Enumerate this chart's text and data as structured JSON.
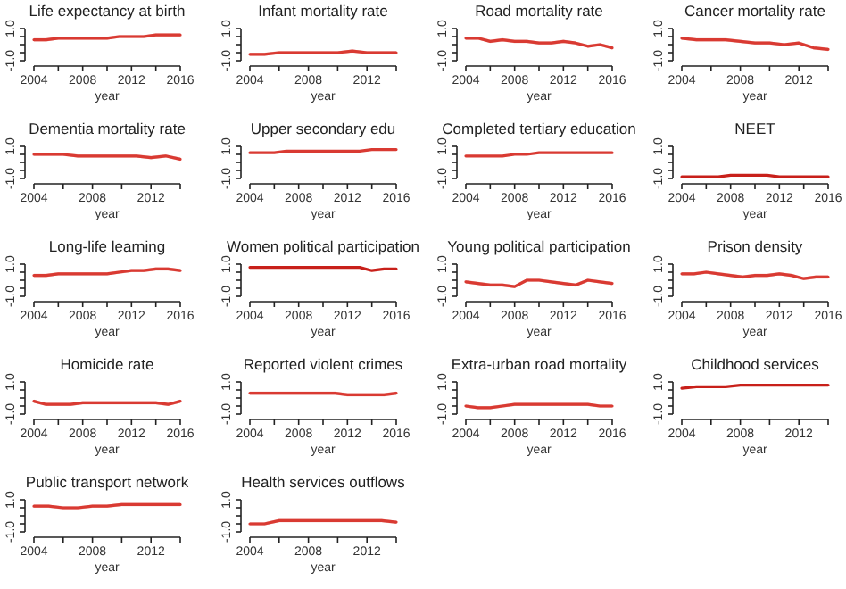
{
  "chart_data": [
    {
      "type": "line",
      "title": "Life expectancy at birth",
      "xlabel": "year",
      "x": [
        2004,
        2005,
        2006,
        2007,
        2008,
        2009,
        2010,
        2011,
        2012,
        2013,
        2014,
        2015,
        2016
      ],
      "xlim": [
        2004,
        2016
      ],
      "xticks": [
        2004,
        {
          "value": 2006,
          "label": null
        },
        2008,
        {
          "value": 2010,
          "label": null
        },
        2012,
        {
          "value": 2014,
          "label": null
        },
        2016
      ],
      "ylim": [
        -1,
        1
      ],
      "yticks": [
        {
          "value": -1,
          "label": "-1.0"
        },
        {
          "value": -0.5,
          "label": null
        },
        {
          "value": 0,
          "label": null
        },
        {
          "value": 0.5,
          "label": null
        },
        {
          "value": 1,
          "label": "1.0"
        }
      ],
      "series": [
        {
          "color": "#d93a32",
          "values": [
            0.3,
            0.3,
            0.4,
            0.4,
            0.4,
            0.4,
            0.4,
            0.5,
            0.5,
            0.5,
            0.6,
            0.6,
            0.6
          ],
          "lower": [
            0.2,
            0.2,
            0.3,
            0.3,
            0.3,
            0.3,
            0.3,
            0.4,
            0.4,
            0.4,
            0.5,
            0.5,
            0.5
          ],
          "upper": [
            0.4,
            0.4,
            0.5,
            0.5,
            0.5,
            0.5,
            0.5,
            0.6,
            0.6,
            0.6,
            0.7,
            0.7,
            0.7
          ]
        }
      ]
    },
    {
      "type": "line",
      "title": "Infant mortality rate",
      "xlabel": "year",
      "x": [
        2004,
        2005,
        2006,
        2007,
        2008,
        2009,
        2010,
        2011,
        2012,
        2013,
        2014
      ],
      "xlim": [
        2004,
        2014
      ],
      "xticks": [
        2004,
        {
          "value": 2006,
          "label": null
        },
        2008,
        {
          "value": 2010,
          "label": null
        },
        2012,
        {
          "value": 2014,
          "label": null
        }
      ],
      "ylim": [
        -1,
        1
      ],
      "yticks": [
        {
          "value": -1,
          "label": "-1.0"
        },
        {
          "value": -0.5,
          "label": null
        },
        {
          "value": 0,
          "label": null
        },
        {
          "value": 0.5,
          "label": null
        },
        {
          "value": 1,
          "label": "1.0"
        }
      ],
      "series": [
        {
          "color": "#d93a32",
          "values": [
            -0.6,
            -0.6,
            -0.5,
            -0.5,
            -0.5,
            -0.5,
            -0.5,
            -0.4,
            -0.5,
            -0.5,
            -0.5
          ],
          "lower": [
            -0.7,
            -0.7,
            -0.6,
            -0.6,
            -0.6,
            -0.6,
            -0.6,
            -0.5,
            -0.6,
            -0.6,
            -0.6
          ],
          "upper": [
            -0.5,
            -0.5,
            -0.4,
            -0.4,
            -0.4,
            -0.4,
            -0.4,
            -0.3,
            -0.4,
            -0.4,
            -0.4
          ]
        }
      ]
    },
    {
      "type": "line",
      "title": "Road mortality rate",
      "xlabel": "year",
      "x": [
        2004,
        2005,
        2006,
        2007,
        2008,
        2009,
        2010,
        2011,
        2012,
        2013,
        2014,
        2015,
        2016
      ],
      "xlim": [
        2004,
        2016
      ],
      "xticks": [
        2004,
        {
          "value": 2006,
          "label": null
        },
        2008,
        {
          "value": 2010,
          "label": null
        },
        2012,
        {
          "value": 2014,
          "label": null
        },
        2016
      ],
      "ylim": [
        -1,
        1
      ],
      "yticks": [
        {
          "value": -1,
          "label": "-1.0"
        },
        {
          "value": -0.5,
          "label": null
        },
        {
          "value": 0,
          "label": null
        },
        {
          "value": 0.5,
          "label": null
        },
        {
          "value": 1,
          "label": "1.0"
        }
      ],
      "series": [
        {
          "color": "#d93a32",
          "values": [
            0.4,
            0.4,
            0.2,
            0.3,
            0.2,
            0.2,
            0.1,
            0.1,
            0.2,
            0.1,
            -0.1,
            0,
            -0.2
          ],
          "lower": [
            0.3,
            0.3,
            0.1,
            0.2,
            0.1,
            0.1,
            0,
            0,
            0.1,
            0,
            -0.2,
            -0.1,
            -0.3
          ],
          "upper": [
            0.5,
            0.5,
            0.3,
            0.4,
            0.3,
            0.3,
            0.2,
            0.2,
            0.3,
            0.2,
            0,
            0.1,
            -0.1
          ]
        }
      ]
    },
    {
      "type": "line",
      "title": "Cancer mortality rate",
      "xlabel": "year",
      "x": [
        2004,
        2005,
        2006,
        2007,
        2008,
        2009,
        2010,
        2011,
        2012,
        2013,
        2014
      ],
      "xlim": [
        2004,
        2014
      ],
      "xticks": [
        2004,
        {
          "value": 2006,
          "label": null
        },
        2008,
        {
          "value": 2010,
          "label": null
        },
        2012,
        {
          "value": 2014,
          "label": null
        }
      ],
      "ylim": [
        -1,
        1
      ],
      "yticks": [
        {
          "value": -1,
          "label": "-1.0"
        },
        {
          "value": -0.5,
          "label": null
        },
        {
          "value": 0,
          "label": null
        },
        {
          "value": 0.5,
          "label": null
        },
        {
          "value": 1,
          "label": "1.0"
        }
      ],
      "series": [
        {
          "color": "#d93a32",
          "values": [
            0.4,
            0.3,
            0.3,
            0.3,
            0.2,
            0.1,
            0.1,
            0,
            0.1,
            -0.2,
            -0.3
          ],
          "lower": [
            0.3,
            0.2,
            0.2,
            0.2,
            0.1,
            0,
            0,
            -0.1,
            0,
            -0.3,
            -0.4
          ],
          "upper": [
            0.5,
            0.4,
            0.4,
            0.4,
            0.3,
            0.2,
            0.2,
            0.1,
            0.2,
            -0.1,
            -0.2
          ]
        }
      ]
    },
    {
      "type": "line",
      "title": "Dementia mortality rate",
      "xlabel": "year",
      "x": [
        2004,
        2005,
        2006,
        2007,
        2008,
        2009,
        2010,
        2011,
        2012,
        2013,
        2014
      ],
      "xlim": [
        2004,
        2014
      ],
      "xticks": [
        2004,
        {
          "value": 2006,
          "label": null
        },
        2008,
        {
          "value": 2010,
          "label": null
        },
        2012,
        {
          "value": 2014,
          "label": null
        }
      ],
      "ylim": [
        -1,
        1
      ],
      "yticks": [
        {
          "value": -1,
          "label": "-1.0"
        },
        {
          "value": -0.5,
          "label": null
        },
        {
          "value": 0,
          "label": null
        },
        {
          "value": 0.5,
          "label": null
        },
        {
          "value": 1,
          "label": "1.0"
        }
      ],
      "series": [
        {
          "color": "#d93a32",
          "values": [
            0.5,
            0.5,
            0.5,
            0.4,
            0.4,
            0.4,
            0.4,
            0.4,
            0.3,
            0.4,
            0.2
          ],
          "lower": [
            0.4,
            0.4,
            0.4,
            0.3,
            0.3,
            0.3,
            0.3,
            0.3,
            0.2,
            0.3,
            0.1
          ],
          "upper": [
            0.6,
            0.6,
            0.6,
            0.5,
            0.5,
            0.5,
            0.5,
            0.5,
            0.4,
            0.5,
            0.3
          ]
        }
      ]
    },
    {
      "type": "line",
      "title": "Upper secondary edu",
      "xlabel": "year",
      "x": [
        2004,
        2005,
        2006,
        2007,
        2008,
        2009,
        2010,
        2011,
        2012,
        2013,
        2014,
        2015,
        2016
      ],
      "xlim": [
        2004,
        2016
      ],
      "xticks": [
        2004,
        {
          "value": 2006,
          "label": null
        },
        2008,
        {
          "value": 2010,
          "label": null
        },
        2012,
        {
          "value": 2014,
          "label": null
        },
        2016
      ],
      "ylim": [
        -1,
        1
      ],
      "yticks": [
        {
          "value": -1,
          "label": "-1.0"
        },
        {
          "value": -0.5,
          "label": null
        },
        {
          "value": 0,
          "label": null
        },
        {
          "value": 0.5,
          "label": null
        },
        {
          "value": 1,
          "label": "1.0"
        }
      ],
      "series": [
        {
          "color": "#d93a32",
          "values": [
            0.6,
            0.6,
            0.6,
            0.7,
            0.7,
            0.7,
            0.7,
            0.7,
            0.7,
            0.7,
            0.8,
            0.8,
            0.8
          ]
        }
      ]
    },
    {
      "type": "line",
      "title": "Completed tertiary education",
      "xlabel": "year",
      "x": [
        2004,
        2005,
        2006,
        2007,
        2008,
        2009,
        2010,
        2011,
        2012,
        2013,
        2014,
        2015,
        2016
      ],
      "xlim": [
        2004,
        2016
      ],
      "xticks": [
        2004,
        {
          "value": 2006,
          "label": null
        },
        2008,
        {
          "value": 2010,
          "label": null
        },
        2012,
        {
          "value": 2014,
          "label": null
        },
        2016
      ],
      "ylim": [
        -1,
        1
      ],
      "yticks": [
        {
          "value": -1,
          "label": "-1.0"
        },
        {
          "value": -0.5,
          "label": null
        },
        {
          "value": 0,
          "label": null
        },
        {
          "value": 0.5,
          "label": null
        },
        {
          "value": 1,
          "label": "1.0"
        }
      ],
      "series": [
        {
          "color": "#d93a32",
          "values": [
            0.4,
            0.4,
            0.4,
            0.4,
            0.5,
            0.5,
            0.6,
            0.6,
            0.6,
            0.6,
            0.6,
            0.6,
            0.6
          ]
        }
      ]
    },
    {
      "type": "line",
      "title": "NEET",
      "xlabel": "year",
      "x": [
        2004,
        2005,
        2006,
        2007,
        2008,
        2009,
        2010,
        2011,
        2012,
        2013,
        2014,
        2015,
        2016
      ],
      "xlim": [
        2004,
        2016
      ],
      "xticks": [
        2004,
        {
          "value": 2006,
          "label": null
        },
        2008,
        {
          "value": 2010,
          "label": null
        },
        2012,
        {
          "value": 2014,
          "label": null
        },
        2016
      ],
      "ylim": [
        -1,
        1
      ],
      "yticks": [
        {
          "value": -1,
          "label": "-1.0"
        },
        {
          "value": -0.5,
          "label": null
        },
        {
          "value": 0,
          "label": null
        },
        {
          "value": 0.5,
          "label": null
        },
        {
          "value": 1,
          "label": "1.0"
        }
      ],
      "series": [
        {
          "color": "#c8201a",
          "values": [
            -0.9,
            -0.9,
            -0.9,
            -0.9,
            -0.8,
            -0.8,
            -0.8,
            -0.8,
            -0.9,
            -0.9,
            -0.9,
            -0.9,
            -0.9
          ]
        }
      ]
    },
    {
      "type": "line",
      "title": "Long-life learning",
      "xlabel": "year",
      "x": [
        2004,
        2005,
        2006,
        2007,
        2008,
        2009,
        2010,
        2011,
        2012,
        2013,
        2014,
        2015,
        2016
      ],
      "xlim": [
        2004,
        2016
      ],
      "xticks": [
        2004,
        {
          "value": 2006,
          "label": null
        },
        2008,
        {
          "value": 2010,
          "label": null
        },
        2012,
        {
          "value": 2014,
          "label": null
        },
        2016
      ],
      "ylim": [
        -1,
        1
      ],
      "yticks": [
        {
          "value": -1,
          "label": "-1.0"
        },
        {
          "value": -0.5,
          "label": null
        },
        {
          "value": 0,
          "label": null
        },
        {
          "value": 0.5,
          "label": null
        },
        {
          "value": 1,
          "label": "1.0"
        }
      ],
      "series": [
        {
          "color": "#d93a32",
          "values": [
            0.3,
            0.3,
            0.4,
            0.4,
            0.4,
            0.4,
            0.4,
            0.5,
            0.6,
            0.6,
            0.7,
            0.7,
            0.6
          ],
          "lower": [
            0.2,
            0.2,
            0.3,
            0.3,
            0.3,
            0.3,
            0.3,
            0.4,
            0.5,
            0.5,
            0.6,
            0.6,
            0.5
          ],
          "upper": [
            0.4,
            0.4,
            0.5,
            0.5,
            0.5,
            0.5,
            0.5,
            0.6,
            0.7,
            0.7,
            0.8,
            0.8,
            0.7
          ]
        }
      ]
    },
    {
      "type": "line",
      "title": "Women political participation",
      "xlabel": "year",
      "x": [
        2004,
        2005,
        2006,
        2007,
        2008,
        2009,
        2010,
        2011,
        2012,
        2013,
        2014,
        2015,
        2016
      ],
      "xlim": [
        2004,
        2016
      ],
      "xticks": [
        2004,
        {
          "value": 2006,
          "label": null
        },
        2008,
        {
          "value": 2010,
          "label": null
        },
        2012,
        {
          "value": 2014,
          "label": null
        },
        2016
      ],
      "ylim": [
        -1,
        1
      ],
      "yticks": [
        {
          "value": -1,
          "label": "-1.0"
        },
        {
          "value": -0.5,
          "label": null
        },
        {
          "value": 0,
          "label": null
        },
        {
          "value": 0.5,
          "label": null
        },
        {
          "value": 1,
          "label": "1.0"
        }
      ],
      "series": [
        {
          "color": "#c8201a",
          "values": [
            0.8,
            0.8,
            0.8,
            0.8,
            0.8,
            0.8,
            0.8,
            0.8,
            0.8,
            0.8,
            0.6,
            0.7,
            0.7
          ]
        }
      ]
    },
    {
      "type": "line",
      "title": "Young political participation",
      "xlabel": "year",
      "x": [
        2004,
        2005,
        2006,
        2007,
        2008,
        2009,
        2010,
        2011,
        2012,
        2013,
        2014,
        2015,
        2016
      ],
      "xlim": [
        2004,
        2016
      ],
      "xticks": [
        2004,
        {
          "value": 2006,
          "label": null
        },
        2008,
        {
          "value": 2010,
          "label": null
        },
        2012,
        {
          "value": 2014,
          "label": null
        },
        2016
      ],
      "ylim": [
        -1,
        1
      ],
      "yticks": [
        {
          "value": -1,
          "label": "-1.0"
        },
        {
          "value": -0.5,
          "label": null
        },
        {
          "value": 0,
          "label": null
        },
        {
          "value": 0.5,
          "label": null
        },
        {
          "value": 1,
          "label": "1.0"
        }
      ],
      "series": [
        {
          "color": "#d93a32",
          "values": [
            -0.1,
            -0.2,
            -0.3,
            -0.3,
            -0.4,
            0,
            0,
            -0.1,
            -0.2,
            -0.3,
            0,
            -0.1,
            -0.2
          ],
          "lower": [
            -0.2,
            -0.3,
            -0.4,
            -0.4,
            -0.5,
            -0.1,
            -0.1,
            -0.2,
            -0.3,
            -0.4,
            -0.1,
            -0.2,
            -0.3
          ],
          "upper": [
            0,
            -0.1,
            -0.2,
            -0.2,
            -0.3,
            0.1,
            0.1,
            0,
            -0.1,
            -0.2,
            0.1,
            0,
            -0.1
          ]
        }
      ]
    },
    {
      "type": "line",
      "title": "Prison density",
      "xlabel": "year",
      "x": [
        2004,
        2005,
        2006,
        2007,
        2008,
        2009,
        2010,
        2011,
        2012,
        2013,
        2014,
        2015,
        2016
      ],
      "xlim": [
        2004,
        2016
      ],
      "xticks": [
        2004,
        {
          "value": 2006,
          "label": null
        },
        2008,
        {
          "value": 2010,
          "label": null
        },
        2012,
        {
          "value": 2014,
          "label": null
        },
        2016
      ],
      "ylim": [
        -1,
        1
      ],
      "yticks": [
        {
          "value": -1,
          "label": "-1.0"
        },
        {
          "value": -0.5,
          "label": null
        },
        {
          "value": 0,
          "label": null
        },
        {
          "value": 0.5,
          "label": null
        },
        {
          "value": 1,
          "label": "1.0"
        }
      ],
      "series": [
        {
          "color": "#d93a32",
          "values": [
            0.4,
            0.4,
            0.5,
            0.4,
            0.3,
            0.2,
            0.3,
            0.3,
            0.4,
            0.3,
            0.1,
            0.2,
            0.2
          ],
          "lower": [
            0.3,
            0.3,
            0.4,
            0.3,
            0.2,
            0.1,
            0.2,
            0.2,
            0.3,
            0.2,
            0,
            0.1,
            0.1
          ],
          "upper": [
            0.5,
            0.5,
            0.6,
            0.5,
            0.4,
            0.3,
            0.4,
            0.4,
            0.5,
            0.4,
            0.2,
            0.3,
            0.3
          ]
        }
      ]
    },
    {
      "type": "line",
      "title": "Homicide rate",
      "xlabel": "year",
      "x": [
        2004,
        2005,
        2006,
        2007,
        2008,
        2009,
        2010,
        2011,
        2012,
        2013,
        2014,
        2015,
        2016
      ],
      "xlim": [
        2004,
        2016
      ],
      "xticks": [
        2004,
        {
          "value": 2006,
          "label": null
        },
        2008,
        {
          "value": 2010,
          "label": null
        },
        2012,
        {
          "value": 2014,
          "label": null
        },
        2016
      ],
      "ylim": [
        -1,
        1
      ],
      "yticks": [
        {
          "value": -1,
          "label": "-1.0"
        },
        {
          "value": -0.5,
          "label": null
        },
        {
          "value": 0,
          "label": null
        },
        {
          "value": 0.5,
          "label": null
        },
        {
          "value": 1,
          "label": "1.0"
        }
      ],
      "series": [
        {
          "color": "#d93a32",
          "values": [
            -0.2,
            -0.4,
            -0.4,
            -0.4,
            -0.3,
            -0.3,
            -0.3,
            -0.3,
            -0.3,
            -0.3,
            -0.3,
            -0.4,
            -0.2
          ],
          "lower": [
            -0.3,
            -0.5,
            -0.5,
            -0.5,
            -0.4,
            -0.4,
            -0.4,
            -0.4,
            -0.4,
            -0.4,
            -0.4,
            -0.5,
            -0.3
          ],
          "upper": [
            -0.1,
            -0.3,
            -0.3,
            -0.3,
            -0.2,
            -0.2,
            -0.2,
            -0.2,
            -0.2,
            -0.2,
            -0.2,
            -0.3,
            -0.1
          ]
        }
      ]
    },
    {
      "type": "line",
      "title": "Reported violent crimes",
      "xlabel": "year",
      "x": [
        2004,
        2005,
        2006,
        2007,
        2008,
        2009,
        2010,
        2011,
        2012,
        2013,
        2014,
        2015,
        2016
      ],
      "xlim": [
        2004,
        2016
      ],
      "xticks": [
        2004,
        {
          "value": 2006,
          "label": null
        },
        2008,
        {
          "value": 2010,
          "label": null
        },
        2012,
        {
          "value": 2014,
          "label": null
        },
        2016
      ],
      "ylim": [
        -1,
        1
      ],
      "yticks": [
        {
          "value": -1,
          "label": "-1.0"
        },
        {
          "value": -0.5,
          "label": null
        },
        {
          "value": 0,
          "label": null
        },
        {
          "value": 0.5,
          "label": null
        },
        {
          "value": 1,
          "label": "1.0"
        }
      ],
      "series": [
        {
          "color": "#d93a32",
          "values": [
            0.3,
            0.3,
            0.3,
            0.3,
            0.3,
            0.3,
            0.3,
            0.3,
            0.2,
            0.2,
            0.2,
            0.2,
            0.3
          ],
          "lower": [
            0.2,
            0.2,
            0.2,
            0.2,
            0.2,
            0.2,
            0.2,
            0.2,
            0.1,
            0.1,
            0.1,
            0.1,
            0.2
          ],
          "upper": [
            0.4,
            0.4,
            0.4,
            0.4,
            0.4,
            0.4,
            0.4,
            0.4,
            0.3,
            0.3,
            0.3,
            0.3,
            0.4
          ]
        }
      ]
    },
    {
      "type": "line",
      "title": "Extra-urban road mortality",
      "xlabel": "year",
      "x": [
        2004,
        2005,
        2006,
        2007,
        2008,
        2009,
        2010,
        2011,
        2012,
        2013,
        2014,
        2015,
        2016
      ],
      "xlim": [
        2004,
        2016
      ],
      "xticks": [
        2004,
        {
          "value": 2006,
          "label": null
        },
        2008,
        {
          "value": 2010,
          "label": null
        },
        2012,
        {
          "value": 2014,
          "label": null
        },
        2016
      ],
      "ylim": [
        -1,
        1
      ],
      "yticks": [
        {
          "value": -1,
          "label": "-1.0"
        },
        {
          "value": -0.5,
          "label": null
        },
        {
          "value": 0,
          "label": null
        },
        {
          "value": 0.5,
          "label": null
        },
        {
          "value": 1,
          "label": "1.0"
        }
      ],
      "series": [
        {
          "color": "#d93a32",
          "values": [
            -0.5,
            -0.6,
            -0.6,
            -0.5,
            -0.4,
            -0.4,
            -0.4,
            -0.4,
            -0.4,
            -0.4,
            -0.4,
            -0.5,
            -0.5
          ],
          "lower": [
            -0.6,
            -0.7,
            -0.7,
            -0.6,
            -0.5,
            -0.5,
            -0.5,
            -0.5,
            -0.5,
            -0.5,
            -0.5,
            -0.6,
            -0.6
          ],
          "upper": [
            -0.4,
            -0.5,
            -0.5,
            -0.4,
            -0.3,
            -0.3,
            -0.3,
            -0.3,
            -0.3,
            -0.3,
            -0.3,
            -0.4,
            -0.4
          ]
        }
      ]
    },
    {
      "type": "line",
      "title": "Childhood services",
      "xlabel": "year",
      "x": [
        2004,
        2005,
        2006,
        2007,
        2008,
        2009,
        2010,
        2011,
        2012,
        2013,
        2014
      ],
      "xlim": [
        2004,
        2014
      ],
      "xticks": [
        2004,
        {
          "value": 2006,
          "label": null
        },
        2008,
        {
          "value": 2010,
          "label": null
        },
        2012,
        {
          "value": 2014,
          "label": null
        }
      ],
      "ylim": [
        -1,
        1
      ],
      "yticks": [
        {
          "value": -1,
          "label": "-1.0"
        },
        {
          "value": -0.5,
          "label": null
        },
        {
          "value": 0,
          "label": null
        },
        {
          "value": 0.5,
          "label": null
        },
        {
          "value": 1,
          "label": "1.0"
        }
      ],
      "series": [
        {
          "color": "#c8201a",
          "values": [
            0.6,
            0.7,
            0.7,
            0.7,
            0.8,
            0.8,
            0.8,
            0.8,
            0.8,
            0.8,
            0.8
          ]
        }
      ]
    },
    {
      "type": "line",
      "title": "Public transport network",
      "xlabel": "year",
      "x": [
        2004,
        2005,
        2006,
        2007,
        2008,
        2009,
        2010,
        2011,
        2012,
        2013,
        2014
      ],
      "xlim": [
        2004,
        2014
      ],
      "xticks": [
        2004,
        {
          "value": 2006,
          "label": null
        },
        2008,
        {
          "value": 2010,
          "label": null
        },
        2012,
        {
          "value": 2014,
          "label": null
        }
      ],
      "ylim": [
        -1,
        1
      ],
      "yticks": [
        {
          "value": -1,
          "label": "-1.0"
        },
        {
          "value": -0.5,
          "label": null
        },
        {
          "value": 0,
          "label": null
        },
        {
          "value": 0.5,
          "label": null
        },
        {
          "value": 1,
          "label": "1.0"
        }
      ],
      "series": [
        {
          "color": "#d93a32",
          "values": [
            0.6,
            0.6,
            0.5,
            0.5,
            0.6,
            0.6,
            0.7,
            0.7,
            0.7,
            0.7,
            0.7
          ],
          "lower": [
            0.5,
            0.5,
            0.4,
            0.4,
            0.5,
            0.5,
            0.6,
            0.6,
            0.6,
            0.6,
            0.6
          ],
          "upper": [
            0.7,
            0.7,
            0.6,
            0.6,
            0.7,
            0.7,
            0.8,
            0.8,
            0.8,
            0.8,
            0.8
          ]
        }
      ]
    },
    {
      "type": "line",
      "title": "Health services outflows",
      "xlabel": "year",
      "x": [
        2004,
        2005,
        2006,
        2007,
        2008,
        2009,
        2010,
        2011,
        2012,
        2013,
        2014
      ],
      "xlim": [
        2004,
        2014
      ],
      "xticks": [
        2004,
        {
          "value": 2006,
          "label": null
        },
        2008,
        {
          "value": 2010,
          "label": null
        },
        2012,
        {
          "value": 2014,
          "label": null
        }
      ],
      "ylim": [
        -1,
        1
      ],
      "yticks": [
        {
          "value": -1,
          "label": "-1.0"
        },
        {
          "value": -0.5,
          "label": null
        },
        {
          "value": 0,
          "label": null
        },
        {
          "value": 0.5,
          "label": null
        },
        {
          "value": 1,
          "label": "1.0"
        }
      ],
      "series": [
        {
          "color": "#d93a32",
          "values": [
            -0.5,
            -0.5,
            -0.3,
            -0.3,
            -0.3,
            -0.3,
            -0.3,
            -0.3,
            -0.3,
            -0.3,
            -0.4
          ],
          "lower": [
            -0.6,
            -0.6,
            -0.4,
            -0.4,
            -0.4,
            -0.4,
            -0.4,
            -0.4,
            -0.4,
            -0.4,
            -0.5
          ],
          "upper": [
            -0.4,
            -0.4,
            -0.2,
            -0.2,
            -0.2,
            -0.2,
            -0.2,
            -0.2,
            -0.2,
            -0.2,
            -0.3
          ]
        }
      ]
    }
  ]
}
